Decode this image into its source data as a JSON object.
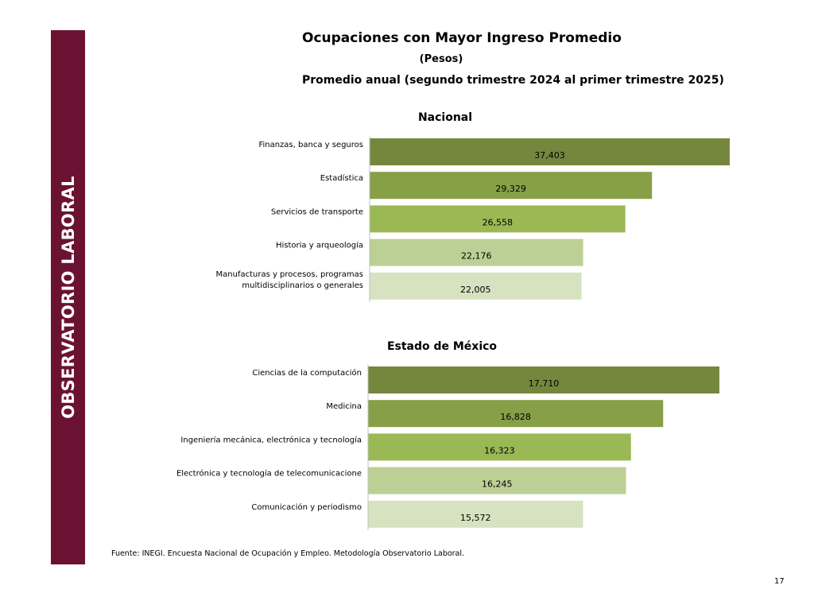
{
  "sidebar": {
    "label": "OBSERVATORIO LABORAL",
    "color": "#6b1232"
  },
  "header": {
    "title": "Ocupaciones con Mayor Ingreso Promedio",
    "subtitle": "(Pesos)",
    "period": "Promedio anual (segundo trimestre 2024 al primer trimestre 2025)"
  },
  "chart_data": [
    {
      "type": "bar",
      "orientation": "horizontal",
      "title": "Nacional",
      "categories": [
        "Finanzas, banca y seguros",
        "Estadística",
        "Servicios de transporte",
        "Historia y arqueología",
        "Manufacturas y procesos, programas multidisciplinarios o generales"
      ],
      "category_lines": [
        [
          "Finanzas, banca y seguros"
        ],
        [
          "Estadística"
        ],
        [
          "Servicios de transporte"
        ],
        [
          "Historia y arqueología"
        ],
        [
          "Manufacturas y procesos, programas",
          "multidisciplinarios o generales"
        ]
      ],
      "values": [
        37403,
        29329,
        26558,
        22176,
        22005
      ],
      "value_labels": [
        "37,403",
        "29,329",
        "26,558",
        "22,176",
        "22,005"
      ],
      "colors": [
        "#75873d",
        "#879f47",
        "#9ab954",
        "#bccf95",
        "#d7e2c0"
      ],
      "xlim": [
        0,
        37403
      ]
    },
    {
      "type": "bar",
      "orientation": "horizontal",
      "title": "Estado de México",
      "categories": [
        "Ciencias de la computación",
        "Medicina",
        "Ingeniería mecánica, electrónica y tecnología",
        "Electrónica y tecnología de telecomunicacione",
        "Comunicación y periodismo"
      ],
      "category_lines": [
        [
          "Ciencias de la computación"
        ],
        [
          "Medicina"
        ],
        [
          "Ingeniería mecánica, electrónica y tecnología"
        ],
        [
          "Electrónica y tecnología de telecomunicacione"
        ],
        [
          "Comunicación y periodismo"
        ]
      ],
      "values": [
        17710,
        16828,
        16323,
        16245,
        15572
      ],
      "value_labels": [
        "17,710",
        "16,828",
        "16,323",
        "16,245",
        "15,572"
      ],
      "colors": [
        "#75873d",
        "#879f47",
        "#9ab954",
        "#bccf95",
        "#d7e2c0"
      ],
      "xlim": [
        12200,
        17710
      ]
    }
  ],
  "footer": {
    "source": "Fuente: INEGI. Encuesta Nacional de Ocupación y Empleo. Metodología Observatorio Laboral.",
    "page_number": "17"
  }
}
